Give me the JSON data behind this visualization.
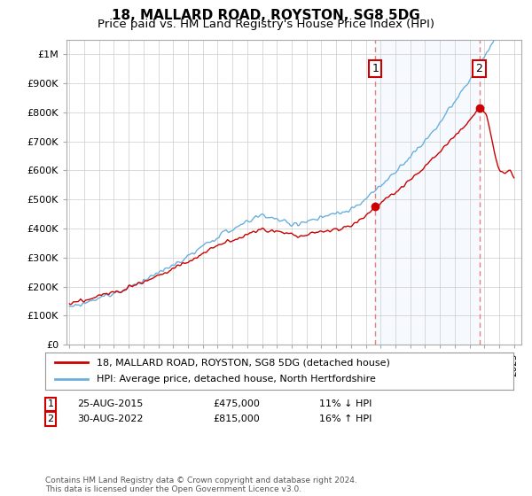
{
  "title": "18, MALLARD ROAD, ROYSTON, SG8 5DG",
  "subtitle": "Price paid vs. HM Land Registry's House Price Index (HPI)",
  "footer": "Contains HM Land Registry data © Crown copyright and database right 2024.\nThis data is licensed under the Open Government Licence v3.0.",
  "legend_line1": "18, MALLARD ROAD, ROYSTON, SG8 5DG (detached house)",
  "legend_line2": "HPI: Average price, detached house, North Hertfordshire",
  "annotation1": {
    "label": "1",
    "date": "25-AUG-2015",
    "price": "£475,000",
    "hpi": "11% ↓ HPI"
  },
  "annotation2": {
    "label": "2",
    "date": "30-AUG-2022",
    "price": "£815,000",
    "hpi": "16% ↑ HPI"
  },
  "sale1_x": 2015.64,
  "sale1_y": 475000,
  "sale2_x": 2022.66,
  "sale2_y": 815000,
  "vline1_x": 2015.64,
  "vline2_x": 2022.66,
  "ylim": [
    0,
    1050000
  ],
  "xlim": [
    1994.8,
    2025.5
  ],
  "hpi_color": "#6ab0de",
  "sale_color": "#cc0000",
  "vline_color": "#e88080",
  "shade_color": "#ddeeff",
  "grid_color": "#cccccc",
  "bg_color": "#ffffff",
  "title_fontsize": 11,
  "subtitle_fontsize": 9.5
}
